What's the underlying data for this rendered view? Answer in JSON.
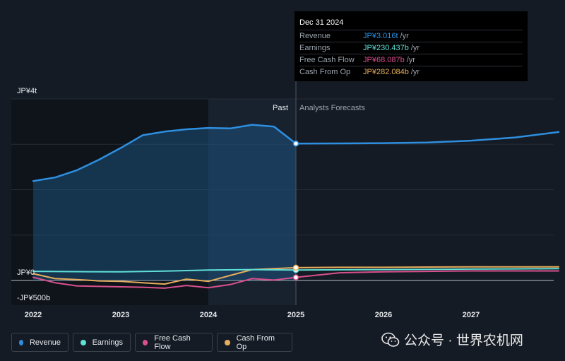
{
  "tooltip": {
    "date": "Dec 31 2024",
    "rows": [
      {
        "label": "Revenue",
        "value": "JP¥3.016t",
        "unit": "/yr",
        "color": "#2e8fe0"
      },
      {
        "label": "Earnings",
        "value": "JP¥230.437b",
        "unit": "/yr",
        "color": "#5fe0d6"
      },
      {
        "label": "Free Cash Flow",
        "value": "JP¥68.087b",
        "unit": "/yr",
        "color": "#d8508e"
      },
      {
        "label": "Cash From Op",
        "value": "JP¥282.084b",
        "unit": "/yr",
        "color": "#e6ad5c"
      }
    ]
  },
  "labels": {
    "past": "Past",
    "forecast": "Analysts Forecasts"
  },
  "legend": [
    {
      "label": "Revenue",
      "color": "#2e8fe0"
    },
    {
      "label": "Earnings",
      "color": "#5fe0d6"
    },
    {
      "label": "Free Cash Flow",
      "color": "#d8508e"
    },
    {
      "label": "Cash From Op",
      "color": "#e6ad5c"
    }
  ],
  "watermark": {
    "text": "公众号 · 世界农机网"
  },
  "chart_data": {
    "type": "line",
    "y_unit": "JP¥ trillions",
    "y_ticks": [
      {
        "value": 4,
        "label": "JP¥4t"
      },
      {
        "value": 0,
        "label": "JP¥0"
      },
      {
        "value": -0.5,
        "label": "-JP¥500b"
      }
    ],
    "x_ticks": [
      "2022",
      "2023",
      "2024",
      "2025",
      "2026",
      "2027"
    ],
    "ylim": [
      -0.5,
      4
    ],
    "xlim": [
      2021.8,
      2028.0
    ],
    "past_end": 2025.0,
    "highlight_range": [
      2024.0,
      2025.0
    ],
    "series": [
      {
        "name": "Revenue",
        "color": "#2e8fe0",
        "fill": true,
        "points": [
          [
            2022.0,
            2.19
          ],
          [
            2022.25,
            2.27
          ],
          [
            2022.5,
            2.43
          ],
          [
            2022.75,
            2.66
          ],
          [
            2023.0,
            2.92
          ],
          [
            2023.25,
            3.2
          ],
          [
            2023.5,
            3.28
          ],
          [
            2023.75,
            3.33
          ],
          [
            2024.0,
            3.36
          ],
          [
            2024.25,
            3.35
          ],
          [
            2024.5,
            3.43
          ],
          [
            2024.75,
            3.39
          ],
          [
            2025.0,
            3.016
          ],
          [
            2025.5,
            3.02
          ],
          [
            2026.0,
            3.025
          ],
          [
            2026.5,
            3.04
          ],
          [
            2027.0,
            3.08
          ],
          [
            2027.5,
            3.15
          ],
          [
            2028.0,
            3.27
          ]
        ]
      },
      {
        "name": "Earnings",
        "color": "#5fe0d6",
        "points": [
          [
            2022.0,
            0.2
          ],
          [
            2022.5,
            0.195
          ],
          [
            2023.0,
            0.19
          ],
          [
            2023.5,
            0.205
          ],
          [
            2024.0,
            0.23
          ],
          [
            2024.5,
            0.24
          ],
          [
            2025.0,
            0.230437
          ],
          [
            2025.5,
            0.235
          ],
          [
            2026.0,
            0.24
          ],
          [
            2026.5,
            0.245
          ],
          [
            2027.0,
            0.25
          ],
          [
            2027.5,
            0.255
          ],
          [
            2028.0,
            0.26
          ]
        ]
      },
      {
        "name": "Free Cash Flow",
        "color": "#d8508e",
        "points": [
          [
            2022.0,
            0.07
          ],
          [
            2022.25,
            -0.05
          ],
          [
            2022.5,
            -0.12
          ],
          [
            2022.75,
            -0.13
          ],
          [
            2023.0,
            -0.14
          ],
          [
            2023.25,
            -0.15
          ],
          [
            2023.5,
            -0.17
          ],
          [
            2023.75,
            -0.11
          ],
          [
            2024.0,
            -0.16
          ],
          [
            2024.25,
            -0.09
          ],
          [
            2024.5,
            0.04
          ],
          [
            2024.75,
            0.01
          ],
          [
            2025.0,
            0.068087
          ],
          [
            2025.5,
            0.17
          ],
          [
            2026.0,
            0.19
          ],
          [
            2026.5,
            0.2
          ],
          [
            2027.0,
            0.21
          ],
          [
            2027.5,
            0.21
          ],
          [
            2028.0,
            0.21
          ]
        ]
      },
      {
        "name": "Cash From Op",
        "color": "#e6ad5c",
        "points": [
          [
            2022.0,
            0.15
          ],
          [
            2022.25,
            0.04
          ],
          [
            2022.5,
            0.02
          ],
          [
            2022.75,
            -0.01
          ],
          [
            2023.0,
            -0.02
          ],
          [
            2023.25,
            -0.05
          ],
          [
            2023.5,
            -0.08
          ],
          [
            2023.75,
            0.03
          ],
          [
            2024.0,
            -0.02
          ],
          [
            2024.25,
            0.11
          ],
          [
            2024.5,
            0.24
          ],
          [
            2024.75,
            0.26
          ],
          [
            2025.0,
            0.282084
          ],
          [
            2025.5,
            0.29
          ],
          [
            2026.0,
            0.29
          ],
          [
            2026.5,
            0.295
          ],
          [
            2027.0,
            0.3
          ],
          [
            2027.5,
            0.3
          ],
          [
            2028.0,
            0.3
          ]
        ]
      }
    ]
  }
}
